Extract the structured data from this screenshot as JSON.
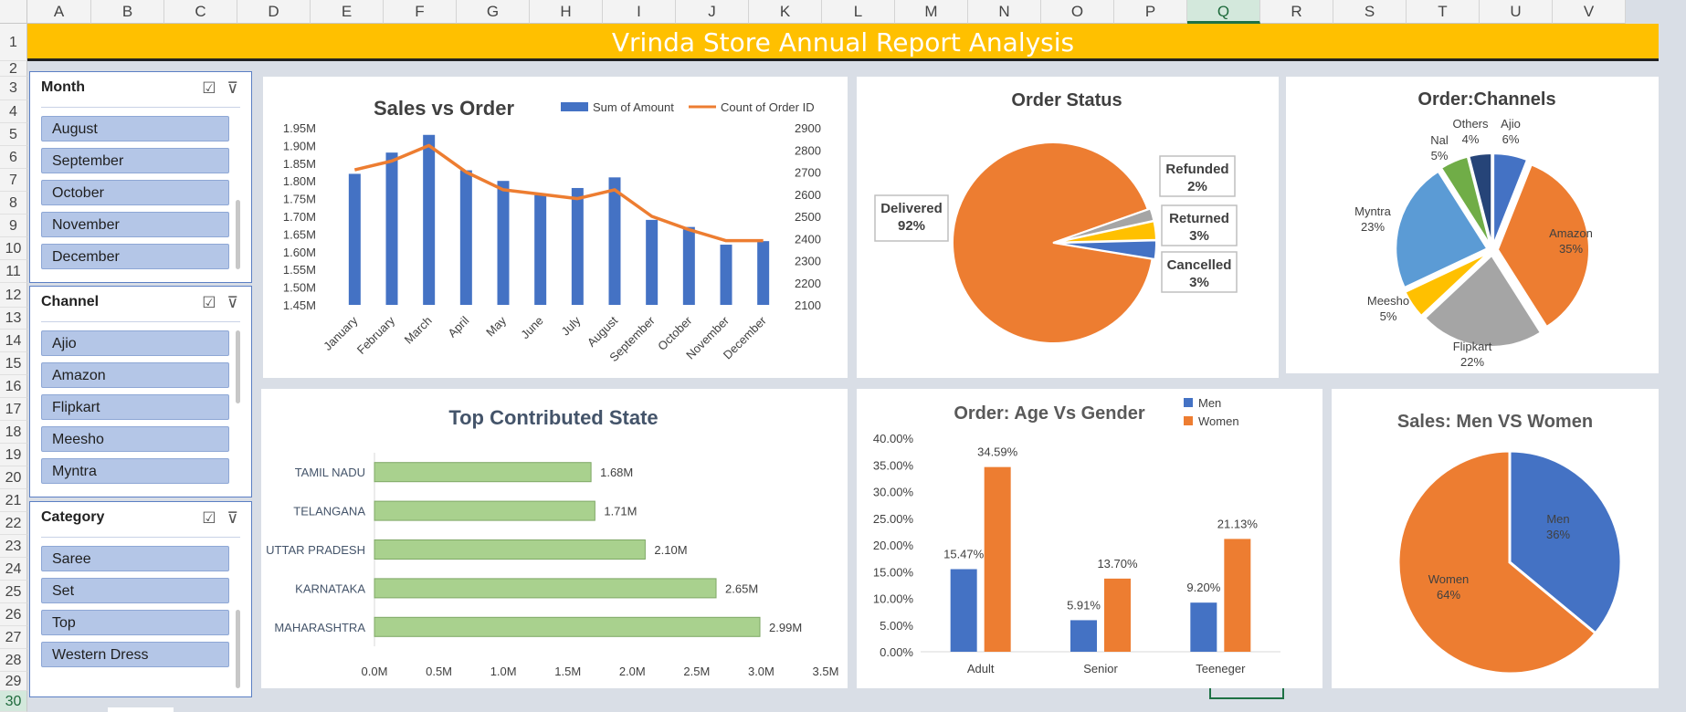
{
  "sheet": {
    "columns": [
      "A",
      "B",
      "C",
      "D",
      "E",
      "F",
      "G",
      "H",
      "I",
      "J",
      "K",
      "L",
      "M",
      "N",
      "O",
      "P",
      "Q",
      "R",
      "S",
      "T",
      "U",
      "V"
    ],
    "selected_column": "Q",
    "rows": [
      "1",
      "2",
      "3",
      "4",
      "5",
      "6",
      "7",
      "8",
      "9",
      "10",
      "11",
      "12",
      "13",
      "14",
      "15",
      "16",
      "17",
      "18",
      "19",
      "20",
      "21",
      "22",
      "23",
      "24",
      "25",
      "26",
      "27",
      "28",
      "29",
      "30"
    ],
    "selected_row": "30"
  },
  "banner": {
    "title": "Vrinda Store Annual Report Analysis"
  },
  "slicers": [
    {
      "title": "Month",
      "items": [
        "August",
        "September",
        "October",
        "November",
        "December"
      ]
    },
    {
      "title": "Channel",
      "items": [
        "Ajio",
        "Amazon",
        "Flipkart",
        "Meesho",
        "Myntra"
      ]
    },
    {
      "title": "Category",
      "items": [
        "Saree",
        "Set",
        "Top",
        "Western Dress"
      ]
    }
  ],
  "icons": {
    "multiselect": "multi-select-icon",
    "clear_filter": "clear-filter-icon"
  },
  "chart_data": [
    {
      "type": "bar",
      "title": "Sales vs Order",
      "categories": [
        "January",
        "February",
        "March",
        "April",
        "May",
        "June",
        "July",
        "August",
        "September",
        "October",
        "November",
        "December"
      ],
      "series": [
        {
          "name": "Sum of Amount",
          "type": "bar",
          "color": "#4472c4",
          "axis": "left",
          "values": [
            1.82,
            1.88,
            1.93,
            1.83,
            1.8,
            1.76,
            1.78,
            1.81,
            1.69,
            1.67,
            1.62,
            1.63
          ]
        },
        {
          "name": "Count of Order ID",
          "type": "line",
          "color": "#ed7d31",
          "axis": "right",
          "values": [
            2710,
            2750,
            2820,
            2700,
            2620,
            2600,
            2580,
            2620,
            2500,
            2440,
            2390,
            2390
          ]
        }
      ],
      "y_left": {
        "ticks": [
          "1.45M",
          "1.50M",
          "1.55M",
          "1.60M",
          "1.65M",
          "1.70M",
          "1.75M",
          "1.80M",
          "1.85M",
          "1.90M",
          "1.95M"
        ],
        "ylim": [
          1.45,
          1.95
        ]
      },
      "y_right": {
        "ticks": [
          "2100",
          "2200",
          "2300",
          "2400",
          "2500",
          "2600",
          "2700",
          "2800",
          "2900"
        ],
        "ylim": [
          2100,
          2900
        ]
      },
      "legend": "top-right"
    },
    {
      "type": "pie",
      "title": "Order Status",
      "labels": [
        "Delivered",
        "Refunded",
        "Returned",
        "Cancelled"
      ],
      "values": [
        92,
        2,
        3,
        3
      ],
      "value_labels": [
        "92%",
        "2%",
        "3%",
        "3%"
      ],
      "colors": [
        "#ed7d31",
        "#a5a5a5",
        "#ffc000",
        "#4472c4"
      ]
    },
    {
      "type": "pie",
      "title": "Order:Channels",
      "labels": [
        "Ajio",
        "Amazon",
        "Flipkart",
        "Meesho",
        "Myntra",
        "Nal",
        "Others"
      ],
      "values": [
        6,
        35,
        22,
        5,
        23,
        5,
        4
      ],
      "value_labels": [
        "6%",
        "35%",
        "22%",
        "5%",
        "23%",
        "5%",
        "4%"
      ],
      "colors": [
        "#4472c4",
        "#ed7d31",
        "#a5a5a5",
        "#ffc000",
        "#5b9bd5",
        "#70ad47",
        "#264478"
      ]
    },
    {
      "type": "bar",
      "orientation": "horizontal",
      "title": "Top Contributed State",
      "categories": [
        "TAMIL NADU",
        "TELANGANA",
        "UTTAR PRADESH",
        "KARNATAKA",
        "MAHARASHTRA"
      ],
      "values": [
        1.68,
        1.71,
        2.1,
        2.65,
        2.99
      ],
      "value_labels": [
        "1.68M",
        "1.71M",
        "2.10M",
        "2.65M",
        "2.99M"
      ],
      "x_ticks": [
        "0.0M",
        "0.5M",
        "1.0M",
        "1.5M",
        "2.0M",
        "2.5M",
        "3.0M",
        "3.5M"
      ],
      "xlim": [
        0,
        3.5
      ],
      "color": "#a9d18e"
    },
    {
      "type": "bar",
      "title": "Order: Age Vs Gender",
      "categories": [
        "Adult",
        "Senior",
        "Teeneger"
      ],
      "series": [
        {
          "name": "Men",
          "color": "#4472c4",
          "values": [
            15.47,
            5.91,
            9.2
          ],
          "labels": [
            "15.47%",
            "5.91%",
            "9.20%"
          ]
        },
        {
          "name": "Women",
          "color": "#ed7d31",
          "values": [
            34.59,
            13.7,
            21.13
          ],
          "labels": [
            "34.59%",
            "13.70%",
            "21.13%"
          ]
        }
      ],
      "y_ticks": [
        "0.00%",
        "5.00%",
        "10.00%",
        "15.00%",
        "20.00%",
        "25.00%",
        "30.00%",
        "35.00%",
        "40.00%"
      ],
      "ylim": [
        0,
        40
      ],
      "legend": "top-right"
    },
    {
      "type": "pie",
      "title": "Sales: Men VS Women",
      "labels": [
        "Men",
        "Women"
      ],
      "values": [
        36,
        64
      ],
      "value_labels": [
        "36%",
        "64%"
      ],
      "colors": [
        "#4472c4",
        "#ed7d31"
      ]
    }
  ]
}
